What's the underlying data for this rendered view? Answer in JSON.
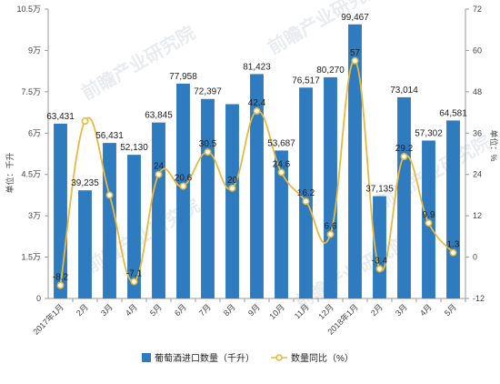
{
  "chart_data": {
    "type": "bar",
    "categories": [
      "2017年1月",
      "2月",
      "3月",
      "4月",
      "5月",
      "6月",
      "7月",
      "8月",
      "9月",
      "10月",
      "11月",
      "12月",
      "2018年1月",
      "2月",
      "3月",
      "4月",
      "5月"
    ],
    "series": [
      {
        "name": "葡萄酒进口数量（千升）",
        "type": "bar",
        "axis": "left",
        "color": "#2e7bbf",
        "values": [
          63431,
          39235,
          56431,
          52130,
          63845,
          77958,
          72397,
          70500,
          81423,
          53687,
          76517,
          80270,
          99467,
          37135,
          73014,
          57302,
          64581
        ],
        "labels": [
          "63,431",
          "39,235",
          "56,431",
          "52,130",
          "63,845",
          "77,958",
          "72,397",
          "",
          "81,423",
          "53,687",
          "76,517",
          "80,270",
          "99,467",
          "37,135",
          "73,014",
          "57,302",
          "64,581"
        ]
      },
      {
        "name": "数量同比（%）",
        "type": "line",
        "axis": "right",
        "color": "#e8b940",
        "values": [
          -8.2,
          39.5,
          18,
          -7.1,
          24,
          20.6,
          30.5,
          20,
          42.4,
          24.6,
          16.2,
          6.6,
          57,
          -3.4,
          29.2,
          9.9,
          1.3
        ],
        "labels": [
          "-8.2",
          "",
          "",
          "-7.1",
          "24",
          "20.6",
          "30.5",
          "20",
          "42.4",
          "24.6",
          "16.2",
          "6.6",
          "57",
          "-3.4",
          "29.2",
          "9.9",
          "1.3"
        ]
      }
    ],
    "y_left": {
      "label": "单位：千升",
      "ylim": [
        0,
        105000
      ],
      "ticks": [
        0,
        15000,
        30000,
        45000,
        60000,
        75000,
        90000,
        105000
      ],
      "tick_labels": [
        "0",
        "1.5万",
        "3万",
        "4.5万",
        "6万",
        "7.5万",
        "9万",
        "10.5万"
      ]
    },
    "y_right": {
      "label": "单位：%",
      "ylim": [
        -12,
        72
      ],
      "ticks": [
        -12,
        0,
        12,
        24,
        36,
        48,
        60,
        72
      ],
      "tick_labels": [
        "-12",
        "0",
        "12",
        "24",
        "36",
        "48",
        "60",
        "72"
      ]
    },
    "grid": false,
    "legend_position": "bottom"
  },
  "watermark": {
    "text": "前瞻产业研究院",
    "color": "#c9d2dc"
  },
  "colors": {
    "bar": "#2e7bbf",
    "line": "#e8b940",
    "axis": "#999999"
  }
}
